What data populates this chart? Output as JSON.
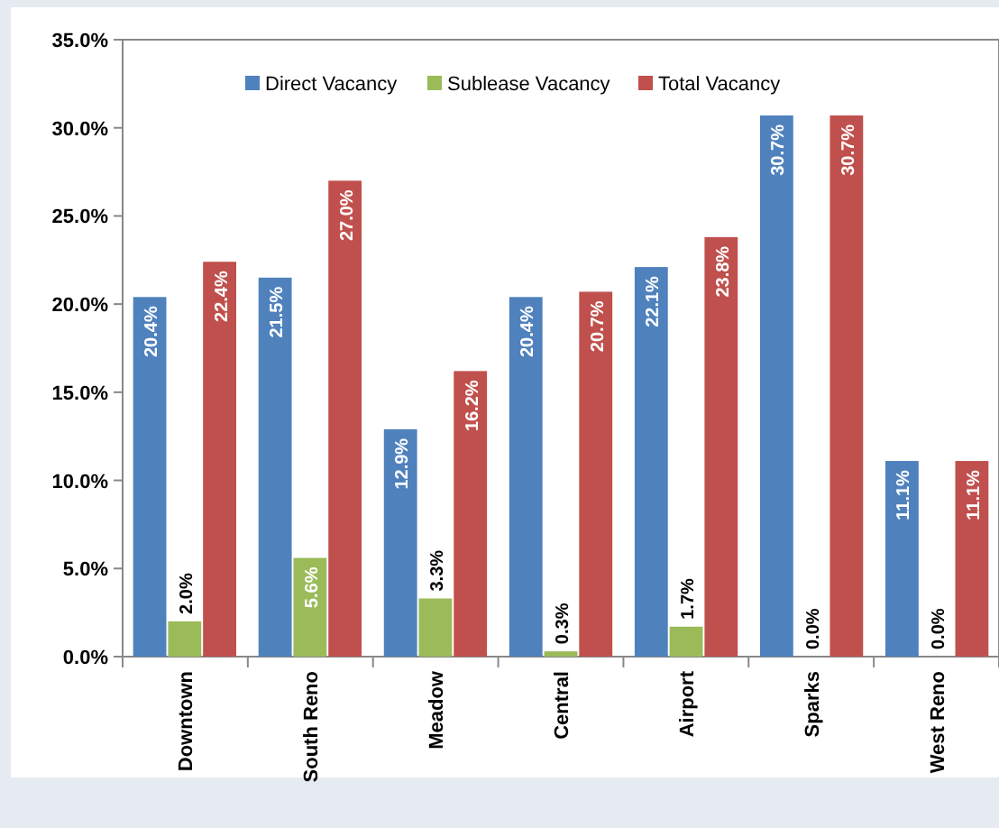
{
  "chart_data": {
    "type": "bar",
    "categories": [
      "Downtown",
      "South Reno",
      "Meadow",
      "Central",
      "Airport",
      "Sparks",
      "West Reno"
    ],
    "series": [
      {
        "name": "Direct Vacancy",
        "color": "#4f81bd",
        "values": [
          20.4,
          21.5,
          12.9,
          20.4,
          22.1,
          30.7,
          11.1
        ],
        "value_labels": [
          "20.4%",
          "21.5%",
          "12.9%",
          "20.4%",
          "22.1%",
          "30.7%",
          "11.1%"
        ]
      },
      {
        "name": "Sublease Vacancy",
        "color": "#9bbb59",
        "values": [
          2.0,
          5.6,
          3.3,
          0.3,
          1.7,
          0.0,
          0.0
        ],
        "value_labels": [
          "2.0%",
          "5.6%",
          "3.3%",
          "0.3%",
          "1.7%",
          "0.0%",
          "0.0%"
        ]
      },
      {
        "name": "Total Vacancy",
        "color": "#c0504d",
        "values": [
          22.4,
          27.0,
          16.2,
          20.7,
          23.8,
          30.7,
          11.1
        ],
        "value_labels": [
          "22.4%",
          "27.0%",
          "16.2%",
          "20.7%",
          "23.8%",
          "30.7%",
          "11.1%"
        ]
      }
    ],
    "ylim": [
      0,
      35
    ],
    "yticks": [
      {
        "value": 0,
        "label": "0.0%"
      },
      {
        "value": 5,
        "label": "5.0%"
      },
      {
        "value": 10,
        "label": "10.0%"
      },
      {
        "value": 15,
        "label": "15.0%"
      },
      {
        "value": 20,
        "label": "20.0%"
      },
      {
        "value": 25,
        "label": "25.0%"
      },
      {
        "value": 30,
        "label": "30.0%"
      },
      {
        "value": 35,
        "label": "35.0%"
      }
    ],
    "legend": "top"
  }
}
